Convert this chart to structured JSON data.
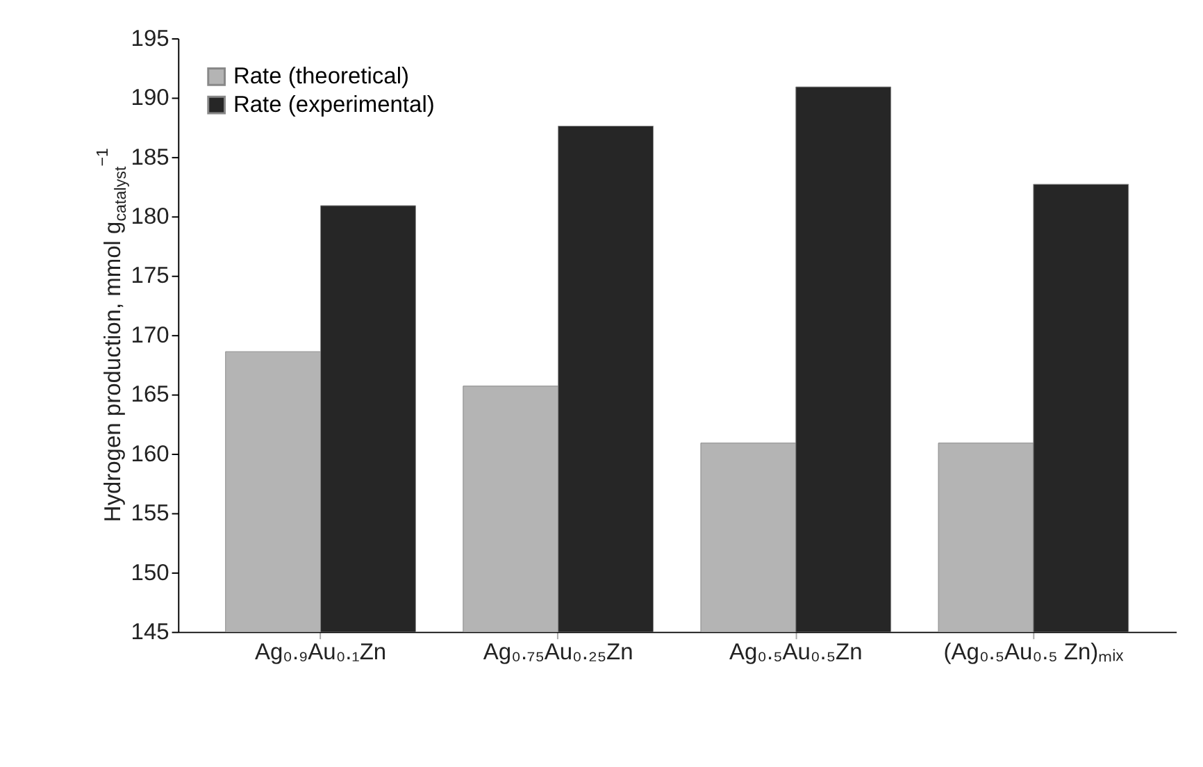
{
  "chart_data": {
    "type": "bar",
    "ylabel": "Hydrogen production, mmol g$_{catalyst}$$^{−1}$",
    "categories": [
      "Ag₀.₉Au₀.₁Zn",
      "Ag₀.₇₅Au₀.₂₅Zn",
      "Ag₀.₅Au₀.₅Zn",
      "(Ag₀.₅Au₀.₅ Zn)ₘᵢₓ"
    ],
    "series": [
      {
        "name": "Rate (theoretical)",
        "color": "#b4b4b4",
        "values": [
          168.6,
          165.7,
          160.9,
          160.9
        ]
      },
      {
        "name": "Rate (experimental)",
        "color": "#262626",
        "values": [
          180.9,
          187.6,
          190.9,
          182.7
        ]
      }
    ],
    "ylim": [
      145,
      195
    ],
    "yticks": [
      145,
      150,
      155,
      160,
      165,
      170,
      175,
      180,
      185,
      190,
      195
    ],
    "grid": false,
    "legend": "top left"
  }
}
